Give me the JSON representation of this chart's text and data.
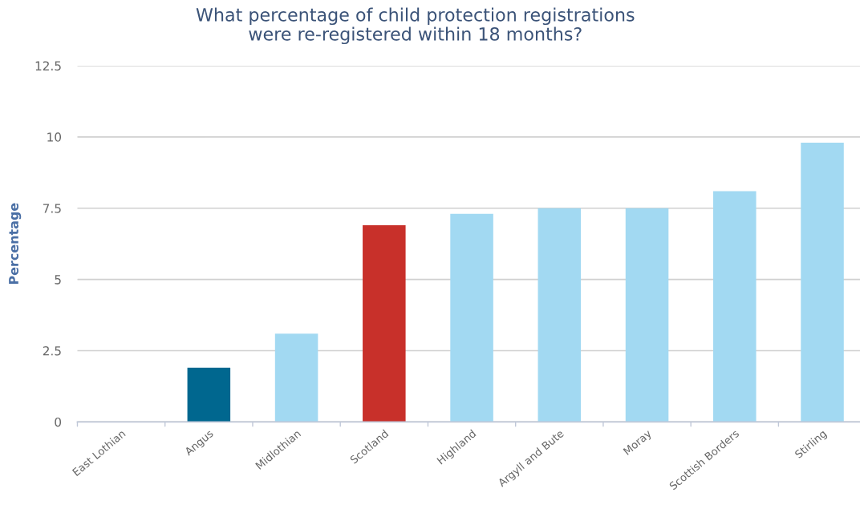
{
  "chart_data": {
    "type": "bar",
    "title": "What percentage of child protection registrations\nwere re-registered within 18 months?",
    "ylabel": "Percentage",
    "categories": [
      "East Lothian",
      "Angus",
      "Midlothian",
      "Scotland",
      "Highland",
      "Argyll and Bute",
      "Moray",
      "Scottish Borders",
      "Stirling"
    ],
    "values": [
      0,
      1.9,
      3.1,
      6.9,
      7.3,
      7.5,
      7.5,
      8.1,
      9.8
    ],
    "colors": [
      "#a2d9f2",
      "#00678f",
      "#a2d9f2",
      "#c8302a",
      "#a2d9f2",
      "#a2d9f2",
      "#a2d9f2",
      "#a2d9f2",
      "#a2d9f2"
    ],
    "ylim": [
      0,
      12.5
    ],
    "yticks": [
      0,
      2.5,
      5,
      7.5,
      10,
      12.5
    ],
    "grid": "y",
    "legend": false
  }
}
